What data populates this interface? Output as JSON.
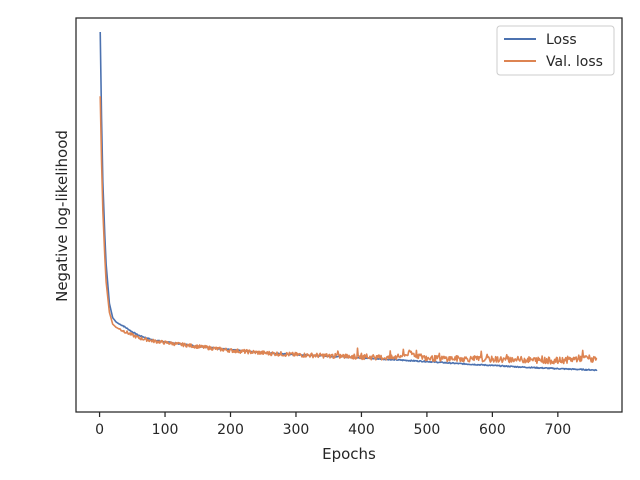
{
  "chart_data": {
    "type": "line",
    "xlabel": "Epochs",
    "ylabel": "Negative log-likelihood",
    "xlim": [
      -36,
      798
    ],
    "ylim": [
      0,
      1
    ],
    "x_ticks": [
      0,
      100,
      200,
      300,
      400,
      500,
      600,
      700
    ],
    "y_ticks_shown": false,
    "grid": false,
    "legend_position": "top-right",
    "colors": {
      "Loss": "#4c72b0",
      "Val. loss": "#dd8452",
      "axes": "#262626"
    },
    "series": [
      {
        "name": "Loss",
        "x": [
          1,
          3,
          5,
          8,
          10,
          15,
          20,
          25,
          30,
          35,
          40,
          50,
          60,
          80,
          100,
          150,
          200,
          250,
          300,
          350,
          400,
          450,
          500,
          550,
          600,
          650,
          700,
          760
        ],
        "y": [
          1.0,
          0.76,
          0.58,
          0.43,
          0.35,
          0.24,
          0.2,
          0.188,
          0.182,
          0.178,
          0.172,
          0.16,
          0.15,
          0.138,
          0.132,
          0.12,
          0.11,
          0.102,
          0.096,
          0.092,
          0.087,
          0.082,
          0.077,
          0.071,
          0.066,
          0.061,
          0.057,
          0.053
        ]
      },
      {
        "name": "Val. loss",
        "x": [
          1,
          3,
          5,
          8,
          10,
          15,
          20,
          25,
          30,
          40,
          50,
          60,
          80,
          100,
          150,
          200,
          250,
          300,
          350,
          400,
          450,
          475,
          500,
          550,
          600,
          650,
          700,
          745,
          760
        ],
        "y": [
          0.82,
          0.64,
          0.5,
          0.37,
          0.3,
          0.215,
          0.182,
          0.173,
          0.168,
          0.16,
          0.151,
          0.143,
          0.135,
          0.13,
          0.119,
          0.108,
          0.101,
          0.096,
          0.093,
          0.09,
          0.087,
          0.1,
          0.086,
          0.085,
          0.083,
          0.082,
          0.079,
          0.088,
          0.078
        ]
      }
    ]
  }
}
